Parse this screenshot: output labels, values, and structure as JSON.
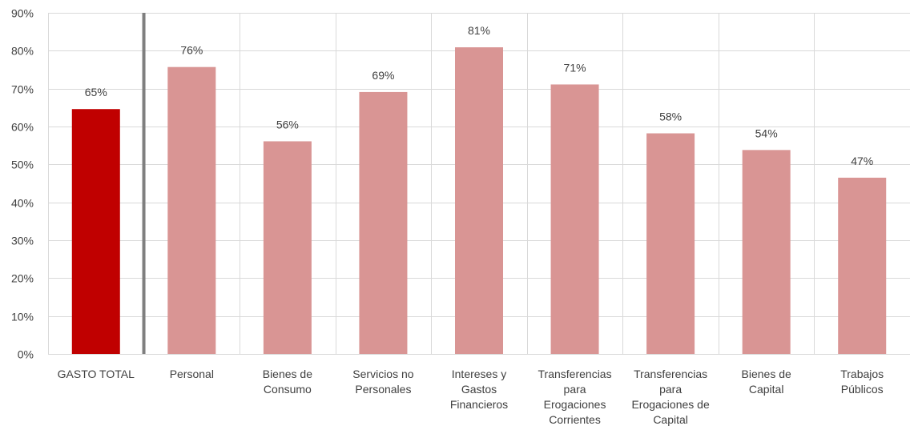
{
  "chart_data": {
    "type": "bar",
    "categories": [
      [
        "GASTO TOTAL"
      ],
      [
        "Personal"
      ],
      [
        "Bienes de",
        "Consumo"
      ],
      [
        "Servicios no",
        "Personales"
      ],
      [
        "Intereses y",
        "Gastos",
        "Financieros"
      ],
      [
        "Transferencias",
        "para",
        "Erogaciones",
        "Corrientes"
      ],
      [
        "Transferencias",
        "para",
        "Erogaciones de",
        "Capital"
      ],
      [
        "Bienes de",
        "Capital"
      ],
      [
        "Trabajos",
        "Públicos"
      ]
    ],
    "values": [
      64.6,
      75.7,
      56.1,
      69.1,
      80.9,
      71.1,
      58.2,
      53.8,
      46.5
    ],
    "data_labels": [
      "65%",
      "76%",
      "56%",
      "69%",
      "81%",
      "71%",
      "58%",
      "54%",
      "47%"
    ],
    "colors": [
      "#c00000",
      "#d99594",
      "#d99594",
      "#d99594",
      "#d99594",
      "#d99594",
      "#d99594",
      "#d99594",
      "#d99594"
    ],
    "separator_color": "#7f7f7f",
    "ylim": [
      0,
      90
    ],
    "yticks": [
      0,
      10,
      20,
      30,
      40,
      50,
      60,
      70,
      80,
      90
    ],
    "ytick_labels": [
      "0%",
      "10%",
      "20%",
      "30%",
      "40%",
      "50%",
      "60%",
      "70%",
      "80%",
      "90%"
    ],
    "title": "",
    "xlabel": "",
    "ylabel": "",
    "grid": true,
    "legend": "none"
  }
}
